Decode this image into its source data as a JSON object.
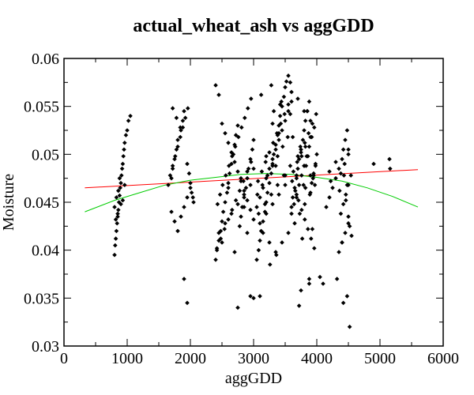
{
  "chart_data": {
    "type": "scatter",
    "title": "actual_wheat_ash vs aggGDD",
    "xlabel": "aggGDD",
    "ylabel": "Moisture",
    "xlim": [
      0,
      6000
    ],
    "ylim": [
      0.03,
      0.06
    ],
    "x_ticks": [
      "0",
      "1000",
      "2000",
      "3000",
      "4000",
      "5000",
      "6000"
    ],
    "x_tick_values": [
      0,
      1000,
      2000,
      3000,
      4000,
      5000,
      6000
    ],
    "y_ticks": [
      "0.03",
      "0.035",
      "0.04",
      "0.045",
      "0.05",
      "0.055",
      "0.06"
    ],
    "y_tick_values": [
      0.03,
      0.035,
      0.04,
      0.045,
      0.05,
      0.055,
      0.06
    ],
    "grid": false,
    "colors": {
      "points": "#000000",
      "linear_fit": "#ff0000",
      "quadratic_fit": "#00cc00"
    },
    "linear_fit": {
      "x": [
        330,
        5600
      ],
      "y": [
        0.0465,
        0.0484
      ]
    },
    "quadratic_fit": {
      "x": [
        330,
        800,
        1200,
        1600,
        2000,
        2400,
        2800,
        3200,
        3600,
        4000,
        4400,
        4800,
        5200,
        5600
      ],
      "y": [
        0.044,
        0.0452,
        0.046,
        0.0468,
        0.0473,
        0.0476,
        0.0479,
        0.048,
        0.0479,
        0.0476,
        0.0472,
        0.0465,
        0.0456,
        0.0445
      ]
    },
    "points": {
      "x": [
        800,
        810,
        820,
        830,
        840,
        850,
        860,
        870,
        880,
        890,
        900,
        910,
        920,
        930,
        940,
        950,
        960,
        980,
        1000,
        1020,
        1050,
        800,
        830,
        860,
        900,
        930,
        960,
        820,
        850,
        880,
        1650,
        1700,
        1720,
        1750,
        1780,
        1800,
        1850,
        1880,
        1900,
        1950,
        1980,
        2000,
        2020,
        2050,
        1700,
        1750,
        1800,
        1850,
        1900,
        1950,
        1680,
        1720,
        1760,
        1800,
        1840,
        1880,
        1920,
        1960,
        2000,
        2040,
        1900,
        1950,
        1720,
        1780,
        1840,
        2400,
        2420,
        2450,
        2480,
        2500,
        2520,
        2550,
        2580,
        2600,
        2620,
        2650,
        2680,
        2700,
        2720,
        2750,
        2780,
        2800,
        2820,
        2850,
        2880,
        2900,
        2920,
        2950,
        2980,
        3000,
        2400,
        2450,
        2500,
        2550,
        2600,
        2650,
        2700,
        2750,
        2800,
        2850,
        2900,
        2950,
        3000,
        2430,
        2470,
        2510,
        2560,
        2610,
        2660,
        2710,
        2760,
        2810,
        2860,
        2910,
        2960,
        2420,
        2480,
        2540,
        2600,
        2660,
        2720,
        2780,
        2840,
        2900,
        2960,
        2450,
        2550,
        2650,
        2750,
        2850,
        2950,
        2500,
        2700,
        2900,
        2600,
        2800,
        3000,
        2750,
        2950,
        2850,
        3050,
        3080,
        3100,
        3120,
        3150,
        3180,
        3200,
        3220,
        3250,
        3280,
        3300,
        3320,
        3350,
        3380,
        3400,
        3420,
        3450,
        3480,
        3500,
        3520,
        3550,
        3580,
        3600,
        3050,
        3100,
        3150,
        3200,
        3250,
        3300,
        3350,
        3400,
        3450,
        3500,
        3550,
        3600,
        3070,
        3130,
        3190,
        3250,
        3310,
        3370,
        3430,
        3490,
        3550,
        3060,
        3140,
        3220,
        3300,
        3380,
        3460,
        3540,
        3080,
        3180,
        3280,
        3380,
        3480,
        3580,
        3100,
        3200,
        3300,
        3400,
        3500,
        3150,
        3250,
        3350,
        3450,
        3550,
        3120,
        3280,
        3420,
        3580,
        3200,
        3350,
        3500,
        3300,
        3400,
        3260,
        3360,
        3320,
        3440,
        3100,
        3000,
        3600,
        3620,
        3650,
        3680,
        3700,
        3720,
        3750,
        3780,
        3800,
        3820,
        3850,
        3880,
        3900,
        3920,
        3950,
        3980,
        4000,
        3600,
        3640,
        3680,
        3720,
        3760,
        3800,
        3840,
        3880,
        3920,
        3960,
        3610,
        3660,
        3710,
        3760,
        3810,
        3860,
        3910,
        3960,
        3630,
        3690,
        3750,
        3810,
        3870,
        3930,
        3990,
        3650,
        3730,
        3810,
        3890,
        3970,
        3700,
        3800,
        3900,
        3620,
        3740,
        3860,
        3980,
        3680,
        3820,
        3940,
        3750,
        3880,
        3800,
        3900,
        3700,
        3850,
        3770,
        3930,
        3720,
        3880,
        3790,
        3950,
        3830,
        3680,
        4050,
        4100,
        3760,
        3820,
        3900,
        4150,
        4200,
        4250,
        4300,
        4350,
        4400,
        4420,
        4450,
        4480,
        4500,
        4520,
        4550,
        4200,
        4300,
        4380,
        4420,
        4460,
        4500,
        4540,
        4350,
        4400,
        4450,
        4500,
        4320,
        4420,
        4480,
        4520,
        4380,
        4440,
        4500,
        4220,
        4360,
        4460,
        4400,
        4480,
        4430,
        4500,
        4900,
        5150,
        5160
      ],
      "y": [
        0.0395,
        0.0405,
        0.0412,
        0.042,
        0.0428,
        0.0435,
        0.0442,
        0.045,
        0.0457,
        0.0465,
        0.047,
        0.0478,
        0.0485,
        0.049,
        0.0498,
        0.0505,
        0.0512,
        0.052,
        0.0525,
        0.0535,
        0.054,
        0.0445,
        0.0455,
        0.0462,
        0.0448,
        0.0452,
        0.0468,
        0.0432,
        0.0438,
        0.0475,
        0.0468,
        0.0475,
        0.0485,
        0.0495,
        0.0505,
        0.0515,
        0.0525,
        0.0535,
        0.0545,
        0.049,
        0.048,
        0.047,
        0.046,
        0.045,
        0.044,
        0.043,
        0.042,
        0.0435,
        0.0445,
        0.0455,
        0.0478,
        0.0488,
        0.0498,
        0.0508,
        0.0518,
        0.0528,
        0.0538,
        0.0548,
        0.0465,
        0.0455,
        0.037,
        0.0345,
        0.0548,
        0.0538,
        0.0528,
        0.039,
        0.04,
        0.041,
        0.042,
        0.043,
        0.044,
        0.045,
        0.046,
        0.047,
        0.048,
        0.049,
        0.05,
        0.051,
        0.052,
        0.053,
        0.0425,
        0.0435,
        0.0445,
        0.0455,
        0.0465,
        0.0475,
        0.0485,
        0.0495,
        0.0505,
        0.0515,
        0.0572,
        0.0562,
        0.0532,
        0.0522,
        0.0512,
        0.0502,
        0.0492,
        0.0482,
        0.0472,
        0.0462,
        0.0452,
        0.0442,
        0.0432,
        0.0448,
        0.0458,
        0.0468,
        0.0478,
        0.0488,
        0.0498,
        0.0508,
        0.0518,
        0.0528,
        0.0538,
        0.0548,
        0.0558,
        0.0402,
        0.0412,
        0.0422,
        0.0432,
        0.0442,
        0.0452,
        0.0462,
        0.0472,
        0.0482,
        0.0492,
        0.0418,
        0.0428,
        0.0438,
        0.0448,
        0.0458,
        0.0468,
        0.0408,
        0.0398,
        0.0418,
        0.0465,
        0.0475,
        0.0485,
        0.034,
        0.0352,
        0.0445,
        0.039,
        0.04,
        0.041,
        0.042,
        0.043,
        0.044,
        0.045,
        0.046,
        0.047,
        0.048,
        0.049,
        0.05,
        0.051,
        0.052,
        0.053,
        0.054,
        0.055,
        0.056,
        0.057,
        0.0576,
        0.0582,
        0.0575,
        0.0565,
        0.0445,
        0.0455,
        0.0465,
        0.0475,
        0.0485,
        0.0495,
        0.0505,
        0.0515,
        0.0525,
        0.0535,
        0.0545,
        0.0555,
        0.0472,
        0.0482,
        0.0492,
        0.0502,
        0.0512,
        0.0522,
        0.0532,
        0.0542,
        0.0552,
        0.0458,
        0.0468,
        0.0478,
        0.0488,
        0.0498,
        0.0508,
        0.0518,
        0.0438,
        0.0448,
        0.0458,
        0.0468,
        0.0478,
        0.0488,
        0.0428,
        0.0438,
        0.0448,
        0.0458,
        0.0468,
        0.0418,
        0.0408,
        0.0398,
        0.0408,
        0.0418,
        0.0562,
        0.0572,
        0.0552,
        0.0542,
        0.0498,
        0.0488,
        0.0478,
        0.0532,
        0.0522,
        0.0385,
        0.0395,
        0.0545,
        0.0555,
        0.0352,
        0.035,
        0.0445,
        0.0455,
        0.0465,
        0.0475,
        0.0485,
        0.0495,
        0.0505,
        0.0515,
        0.0525,
        0.0535,
        0.0545,
        0.0555,
        0.046,
        0.047,
        0.048,
        0.049,
        0.05,
        0.0438,
        0.0448,
        0.0458,
        0.0468,
        0.0478,
        0.0488,
        0.0498,
        0.0508,
        0.0518,
        0.0528,
        0.0472,
        0.0462,
        0.0452,
        0.0442,
        0.0432,
        0.0422,
        0.0412,
        0.0402,
        0.0482,
        0.0492,
        0.0502,
        0.0512,
        0.0522,
        0.0532,
        0.0542,
        0.0428,
        0.0438,
        0.0448,
        0.0458,
        0.0468,
        0.0498,
        0.0488,
        0.0478,
        0.0518,
        0.0508,
        0.0498,
        0.0488,
        0.0455,
        0.0465,
        0.0475,
        0.0358,
        0.037,
        0.0545,
        0.0535,
        0.0558,
        0.0545,
        0.0412,
        0.0422,
        0.0342,
        0.0365,
        0.0468,
        0.0478,
        0.0488,
        0.0478,
        0.0372,
        0.0365,
        0.0498,
        0.0508,
        0.0518,
        0.0445,
        0.0455,
        0.0465,
        0.0475,
        0.0485,
        0.0495,
        0.0505,
        0.0515,
        0.0525,
        0.0435,
        0.0425,
        0.0415,
        0.0482,
        0.0492,
        0.0438,
        0.0448,
        0.0458,
        0.0468,
        0.0478,
        0.0398,
        0.0408,
        0.0418,
        0.0428,
        0.037,
        0.0345,
        0.0352,
        0.032,
        0.048,
        0.049,
        0.05,
        0.0472,
        0.0462,
        0.0452,
        0.0408,
        0.0468,
        0.0478,
        0.0505,
        0.049,
        0.0495,
        0.0485
      ]
    }
  }
}
